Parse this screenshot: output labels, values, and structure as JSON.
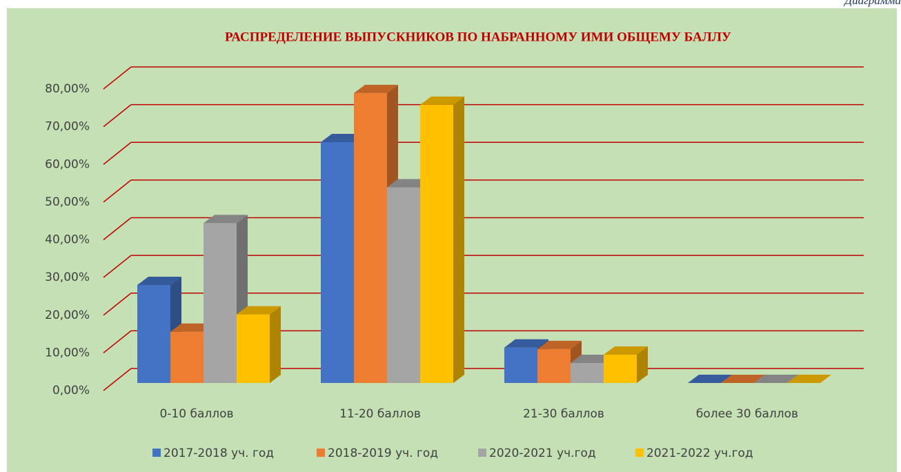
{
  "caption": "Диаграмма",
  "chart_data": {
    "type": "bar3d",
    "title": "РАСПРЕДЕЛЕНИЕ ВЫПУСКНИКОВ ПО НАБРАННОМУ ИМИ ОБЩЕМУ БАЛЛУ",
    "categories": [
      "0-10 баллов",
      "11-20 баллов",
      "21-30 баллов",
      "более 30 баллов"
    ],
    "series": [
      {
        "name": "2017-2018 уч. год",
        "color": "#4472c4",
        "values": [
          26.0,
          63.9,
          9.4,
          0
        ]
      },
      {
        "name": "2018-2019 уч. год",
        "color": "#ed7d31",
        "values": [
          13.6,
          76.9,
          9.0,
          0
        ]
      },
      {
        "name": "2020-2021 уч.год",
        "color": "#a5a5a5",
        "values": [
          42.4,
          51.9,
          5.3,
          0
        ]
      },
      {
        "name": "2021-2022 уч.год",
        "color": "#ffc000",
        "values": [
          18.2,
          73.8,
          7.5,
          0
        ]
      }
    ],
    "ylim": [
      0,
      80
    ],
    "yticks": [
      {
        "value": 0,
        "label": "0,00%"
      },
      {
        "value": 10,
        "label": "10,00%"
      },
      {
        "value": 20,
        "label": "20,00%"
      },
      {
        "value": 30,
        "label": "30,00%"
      },
      {
        "value": 40,
        "label": "40,00%"
      },
      {
        "value": 50,
        "label": "50,00%"
      },
      {
        "value": 60,
        "label": "60,00%"
      },
      {
        "value": 70,
        "label": "70,00%"
      },
      {
        "value": 80,
        "label": "80,00%"
      }
    ],
    "grid": true,
    "grid_color": "#c00000",
    "legend": "bottom"
  }
}
